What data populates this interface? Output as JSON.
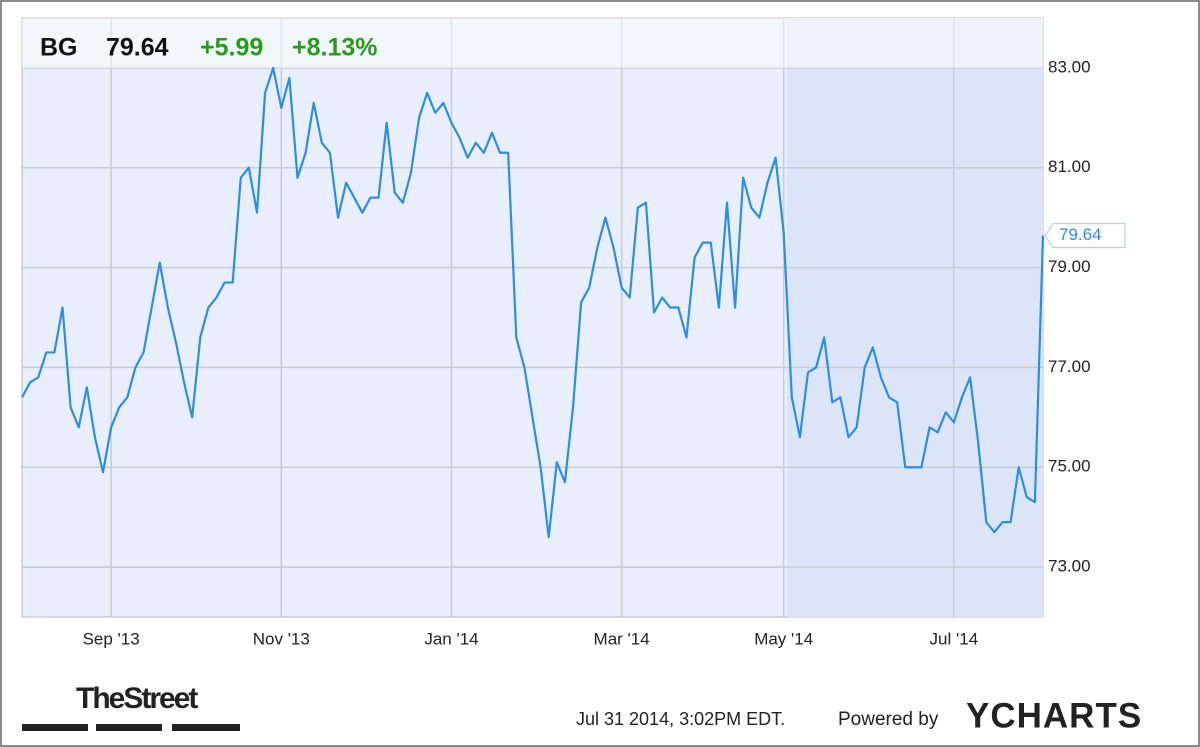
{
  "chart_data": {
    "type": "line",
    "symbol": "BG",
    "price": "79.64",
    "change": "+5.99",
    "change_pct": "+8.13%",
    "timestamp": "Jul 31 2014, 3:02PM EDT.",
    "powered_by": "Powered by",
    "brand": "YCHARTS",
    "source_logo": "TheStreet",
    "color": "#2e8de0",
    "grid": true,
    "ylim": [
      72,
      84
    ],
    "yticks": [
      {
        "value": 73,
        "label": "73.00"
      },
      {
        "value": 75,
        "label": "75.00"
      },
      {
        "value": 77,
        "label": "77.00"
      },
      {
        "value": 79,
        "label": "79.00"
      },
      {
        "value": 81,
        "label": "81.00"
      },
      {
        "value": 83,
        "label": "83.00"
      }
    ],
    "categories": [
      null,
      null,
      null,
      null,
      null,
      null,
      null,
      null,
      null,
      null,
      null,
      "Sep '13",
      null,
      null,
      null,
      null,
      null,
      null,
      null,
      null,
      null,
      null,
      null,
      null,
      null,
      null,
      null,
      null,
      null,
      null,
      null,
      null,
      "Nov '13",
      null,
      null,
      null,
      null,
      null,
      null,
      null,
      null,
      null,
      null,
      null,
      null,
      null,
      null,
      null,
      null,
      null,
      null,
      null,
      null,
      "Jan '14",
      null,
      null,
      null,
      null,
      null,
      null,
      null,
      null,
      null,
      null,
      null,
      null,
      null,
      null,
      null,
      null,
      null,
      null,
      null,
      null,
      "Mar '14",
      null,
      null,
      null,
      null,
      null,
      null,
      null,
      null,
      null,
      null,
      null,
      null,
      null,
      null,
      null,
      null,
      null,
      null,
      null,
      "May '14",
      null,
      null,
      null,
      null,
      null,
      null,
      null,
      null,
      null,
      null,
      null,
      null,
      null,
      null,
      null,
      null,
      null,
      null,
      null,
      null,
      "Jul '14",
      null,
      null,
      null,
      null,
      null,
      null,
      null,
      null,
      null,
      null,
      null
    ],
    "values": [
      76.4,
      76.7,
      76.8,
      77.3,
      77.3,
      78.2,
      76.2,
      75.8,
      76.6,
      75.6,
      74.9,
      75.8,
      76.2,
      76.4,
      77.0,
      77.3,
      78.2,
      79.1,
      78.2,
      77.5,
      76.7,
      76.0,
      77.6,
      78.2,
      78.4,
      78.7,
      78.7,
      80.8,
      81.0,
      80.1,
      82.5,
      83.0,
      82.2,
      82.8,
      80.8,
      81.3,
      82.3,
      81.5,
      81.3,
      80.0,
      80.7,
      80.4,
      80.1,
      80.4,
      80.4,
      81.9,
      80.5,
      80.3,
      80.9,
      82.0,
      82.5,
      82.1,
      82.3,
      81.9,
      81.6,
      81.2,
      81.5,
      81.3,
      81.7,
      81.3,
      81.3,
      77.6,
      77.0,
      76.0,
      75.0,
      73.6,
      75.1,
      74.7,
      76.2,
      78.3,
      78.6,
      79.4,
      80.0,
      79.4,
      78.6,
      78.4,
      80.2,
      80.3,
      78.1,
      78.4,
      78.2,
      78.2,
      77.6,
      79.2,
      79.5,
      79.5,
      78.2,
      80.3,
      78.2,
      80.8,
      80.2,
      80.0,
      80.7,
      81.2,
      79.7,
      76.4,
      75.6,
      76.9,
      77.0,
      77.6,
      76.3,
      76.4,
      75.6,
      75.8,
      77.0,
      77.4,
      76.8,
      76.4,
      76.3,
      75.0,
      75.0,
      75.0,
      75.8,
      75.7,
      76.1,
      75.9,
      76.4,
      76.8,
      75.5,
      73.9,
      73.7,
      73.9,
      73.9,
      75.0,
      74.4,
      74.3,
      79.64
    ]
  }
}
